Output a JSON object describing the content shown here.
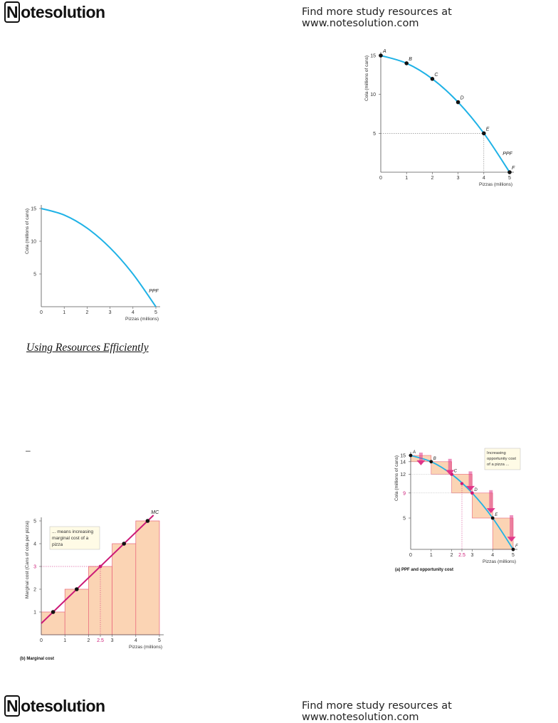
{
  "header": {
    "logo_text": "otesolution",
    "logo_initial": "N",
    "promo_text": "Find more study resources at www.notesolution.com"
  },
  "footer": {
    "logo_text": "otesolution",
    "logo_initial": "N",
    "promo_text": "Find more study resources at www.notesolution.com"
  },
  "section_heading": "Using Resources Efficiently",
  "stray_mark": "–",
  "colors": {
    "ppf_curve": "#1fb2e6",
    "mc_line": "#cc1a77",
    "bar_fill": "#fbd4b4",
    "bar_stroke": "#e8637a",
    "arrow": "#e0368a"
  },
  "chart_data": [
    {
      "id": "ppf-points",
      "type": "line",
      "x": [
        0,
        1,
        2,
        3,
        4,
        5
      ],
      "y": [
        15,
        14,
        12,
        9,
        5,
        0
      ],
      "point_labels": [
        "A",
        "B",
        "C",
        "D",
        "E",
        "F"
      ],
      "curve_label": "PPF",
      "ylabel": "Cola (millions of cans)",
      "xlabel": "Pizzas (millions)",
      "xticks": [
        "0",
        "1",
        "2",
        "3",
        "4",
        "5"
      ],
      "yticks": [
        "5",
        "10",
        "15"
      ],
      "xlim": [
        0,
        5
      ],
      "ylim": [
        0,
        15
      ],
      "guide_point": {
        "x": 4,
        "y": 5
      }
    },
    {
      "id": "ppf-plain",
      "type": "line",
      "x": [
        0,
        1,
        2,
        3,
        4,
        5
      ],
      "y": [
        15,
        14,
        12,
        9,
        5,
        0
      ],
      "curve_label": "PPF",
      "ylabel": "Cola (millions of cans)",
      "xlabel": "Pizzas (millions)",
      "xticks": [
        "0",
        "1",
        "2",
        "3",
        "4",
        "5"
      ],
      "yticks": [
        "5",
        "10",
        "15"
      ],
      "xlim": [
        0,
        5
      ],
      "ylim": [
        0,
        15
      ]
    },
    {
      "id": "marginal-cost",
      "type": "bar",
      "bar_x_ranges": [
        [
          0,
          1
        ],
        [
          1,
          2
        ],
        [
          2,
          3
        ],
        [
          3,
          4
        ],
        [
          4,
          5
        ]
      ],
      "values": [
        1,
        2,
        3,
        4,
        5
      ],
      "line_label": "MC",
      "line_points": [
        {
          "x": 0.5,
          "y": 1
        },
        {
          "x": 1.5,
          "y": 2
        },
        {
          "x": 2.5,
          "y": 3
        },
        {
          "x": 3.5,
          "y": 4
        },
        {
          "x": 4.5,
          "y": 5
        }
      ],
      "highlight": {
        "x": 2.5,
        "y": 3
      },
      "ylabel": "Marginal cost (Cans of cola per pizza)",
      "xlabel": "Pizzas (millions)",
      "xticks": [
        "0",
        "1",
        "2",
        "2.5",
        "3",
        "4",
        "5"
      ],
      "yticks": [
        "1",
        "2",
        "3",
        "4",
        "5"
      ],
      "xlim": [
        0,
        5
      ],
      "ylim": [
        0,
        5
      ],
      "note": [
        "... means increasing",
        "marginal cost of a",
        "pizza"
      ],
      "caption": "(b) Marginal cost"
    },
    {
      "id": "ppf-opportunity",
      "type": "line",
      "x": [
        0,
        1,
        2,
        3,
        4,
        5
      ],
      "y": [
        15,
        14,
        12,
        9,
        5,
        0
      ],
      "point_labels": [
        "A",
        "B",
        "C",
        "D",
        "E",
        "F"
      ],
      "highlight": {
        "x": 2.5,
        "y": 10.5
      },
      "ylabel": "Cola (millions of cans)",
      "xlabel": "Pizzas (millions)",
      "xticks": [
        "0",
        "1",
        "2",
        "2.5",
        "3",
        "4",
        "5"
      ],
      "yticks": [
        "5",
        "9",
        "12",
        "14",
        "15"
      ],
      "xlim": [
        0,
        5
      ],
      "ylim": [
        0,
        15
      ],
      "note": [
        "Increasing",
        "opportunity cost",
        "of a pizza ..."
      ],
      "caption": "(a) PPF and opportunity cost"
    }
  ]
}
